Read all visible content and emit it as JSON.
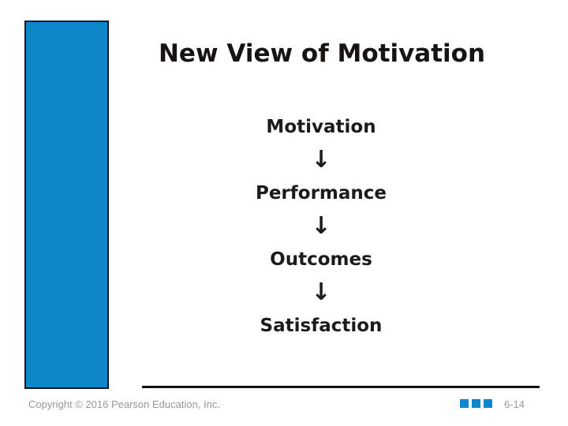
{
  "slide": {
    "title": "New View of Motivation",
    "flow": {
      "arrow": "↓",
      "items": [
        "Motivation",
        "Performance",
        "Outcomes",
        "Satisfaction"
      ]
    },
    "footer": {
      "copyright": "Copyright © 2016 Pearson Education, Inc.",
      "page_number": "6-14"
    },
    "colors": {
      "accent_blue": "#0e86c9",
      "text_black": "#1b1b1b",
      "footer_gray": "#97989c"
    }
  }
}
